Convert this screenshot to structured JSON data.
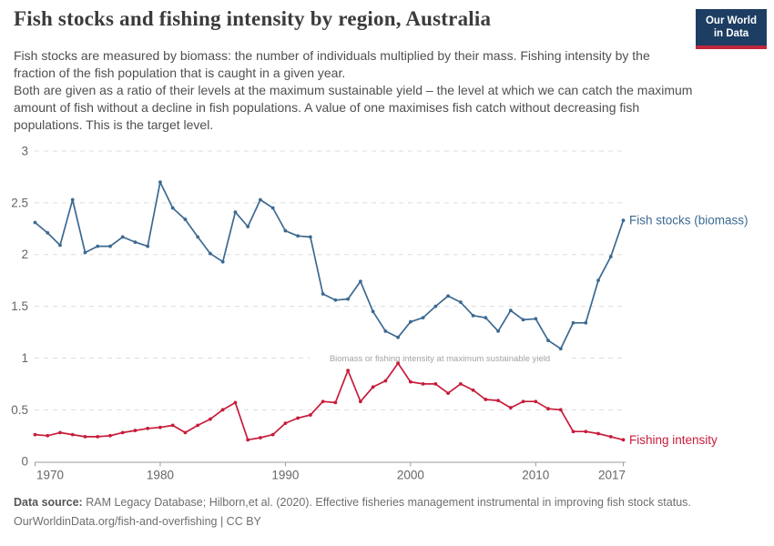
{
  "header": {
    "title": "Fish stocks and fishing intensity by region, Australia",
    "logo": {
      "line1": "Our World",
      "line2": "in Data",
      "bg": "#1d3d63",
      "accent": "#c0273d"
    },
    "subtitle_p1": "Fish stocks are measured by biomass: the number of individuals multiplied by their mass. Fishing intensity by the fraction of the fish population that is caught in a given year.",
    "subtitle_p2": "Both are given as a ratio of their levels at the maximum sustainable yield – the level at which we can catch the maximum amount of fish without a decline in fish populations. A value of one maximises fish catch without decreasing fish populations. This is the target level."
  },
  "chart_data": {
    "type": "line",
    "x": [
      1970,
      1971,
      1972,
      1973,
      1974,
      1975,
      1976,
      1977,
      1978,
      1979,
      1980,
      1981,
      1982,
      1983,
      1984,
      1985,
      1986,
      1987,
      1988,
      1989,
      1990,
      1991,
      1992,
      1993,
      1994,
      1995,
      1996,
      1997,
      1998,
      1999,
      2000,
      2001,
      2002,
      2003,
      2004,
      2005,
      2006,
      2007,
      2008,
      2009,
      2010,
      2011,
      2012,
      2013,
      2014,
      2015,
      2016,
      2017
    ],
    "series": [
      {
        "name": "Fish stocks (biomass)",
        "color": "#3c6991",
        "values": [
          2.31,
          2.21,
          2.09,
          2.53,
          2.02,
          2.08,
          2.08,
          2.17,
          2.12,
          2.08,
          2.7,
          2.45,
          2.34,
          2.17,
          2.01,
          1.93,
          2.41,
          2.27,
          2.53,
          2.45,
          2.23,
          2.18,
          2.17,
          1.62,
          1.56,
          1.57,
          1.74,
          1.45,
          1.26,
          1.2,
          1.35,
          1.39,
          1.5,
          1.6,
          1.54,
          1.41,
          1.39,
          1.26,
          1.46,
          1.37,
          1.38,
          1.17,
          1.09,
          1.34,
          1.34,
          1.75,
          1.98,
          2.33
        ]
      },
      {
        "name": "Fishing intensity",
        "color": "#c71c3a",
        "values": [
          0.26,
          0.25,
          0.28,
          0.26,
          0.24,
          0.24,
          0.25,
          0.28,
          0.3,
          0.32,
          0.33,
          0.35,
          0.28,
          0.35,
          0.41,
          0.5,
          0.57,
          0.21,
          0.23,
          0.26,
          0.37,
          0.42,
          0.45,
          0.58,
          0.57,
          0.88,
          0.58,
          0.72,
          0.78,
          0.95,
          0.77,
          0.75,
          0.75,
          0.66,
          0.75,
          0.69,
          0.6,
          0.59,
          0.52,
          0.58,
          0.58,
          0.51,
          0.5,
          0.29,
          0.29,
          0.27,
          0.24,
          0.21
        ]
      }
    ],
    "title": "Fish stocks and fishing intensity by region, Australia",
    "xlabel": "",
    "ylabel": "",
    "ylim": [
      0,
      3
    ],
    "yticks": [
      0,
      0.5,
      1,
      1.5,
      2,
      2.5,
      3
    ],
    "xticks": [
      1970,
      1980,
      1990,
      2000,
      2010,
      2017
    ],
    "grid": "horizontal-dashed",
    "legend_position": "end-of-line-labels",
    "annotation": "Biomass or fishing intensity at maximum sustainable yield",
    "annotation_y": 1
  },
  "footer": {
    "source_label": "Data source:",
    "source_text": " RAM Legacy Database; Hilborn,et al. (2020). Effective fisheries management instrumental in improving fish stock status.",
    "link_line": "OurWorldinData.org/fish-and-overfishing | CC BY"
  }
}
